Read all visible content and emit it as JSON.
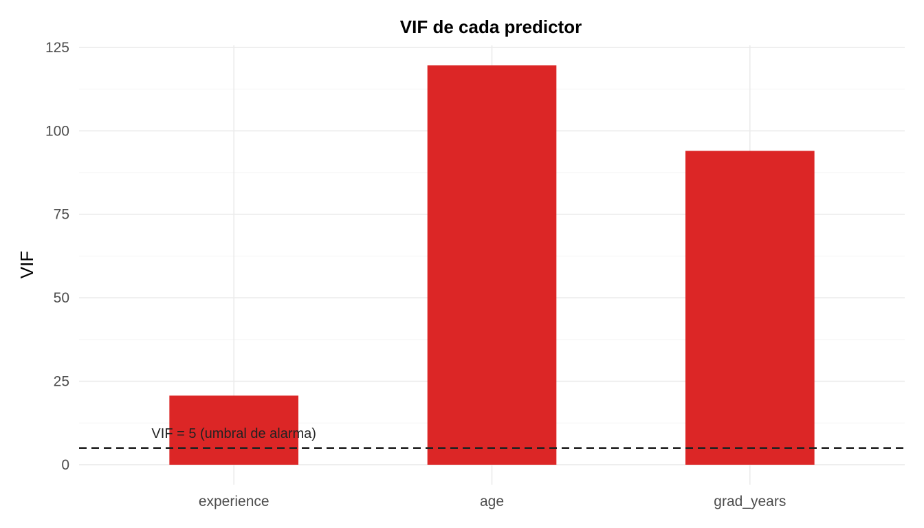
{
  "chart_data": {
    "type": "bar",
    "title": "VIF de cada predictor",
    "xlabel": "",
    "ylabel": "VIF",
    "categories": [
      "experience",
      "age",
      "grad_years"
    ],
    "values": [
      20.7,
      119.6,
      94.0
    ],
    "ylim": [
      -5.98,
      125.6
    ],
    "yticks": [
      0,
      25,
      50,
      75,
      100,
      125
    ],
    "ytick_labels": [
      "0",
      "25",
      "50",
      "75",
      "100",
      "125"
    ],
    "grid": true,
    "bar_color": "#DC2626",
    "reference_line": {
      "value": 5,
      "style": "dashed",
      "color": "#222222"
    },
    "annotation": {
      "text": "VIF = 5 (umbral de alarma)",
      "x_category": "experience",
      "y": 8
    }
  }
}
